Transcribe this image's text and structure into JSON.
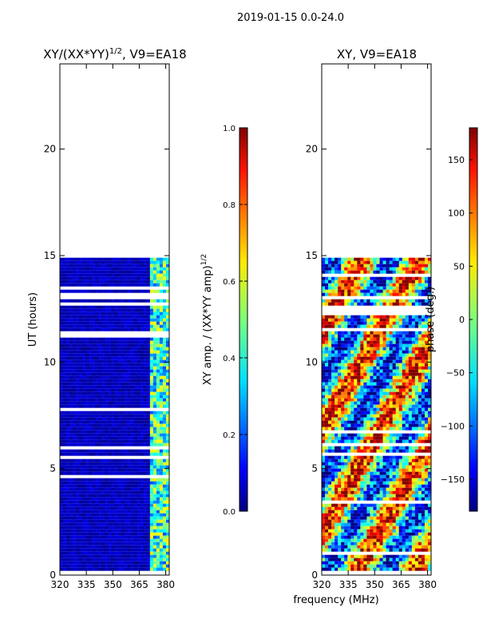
{
  "figure": {
    "suptitle": "2019-01-15 0.0-24.0",
    "shared_xlabel": "frequency (MHz)"
  },
  "chart_data": [
    {
      "type": "heatmap",
      "title": "XY/(XX*YY)^1/2, V9=EA18",
      "title_main": "XY/(XX*YY)",
      "title_exp": "1/2",
      "title_tail": ", V9=EA18",
      "xlabel": "",
      "ylabel": "UT (hours)",
      "xlim": [
        320,
        382
      ],
      "ylim": [
        0,
        24
      ],
      "xticks": [
        320,
        335,
        350,
        365,
        380
      ],
      "yticks": [
        0,
        5,
        10,
        15,
        20
      ],
      "data_range_hours": [
        0.3,
        14.9
      ],
      "colorbar": {
        "label_main": "XY amp. / (XX*YY amp)",
        "label_exp": "1/2",
        "range": [
          0.0,
          1.0
        ],
        "ticks": [
          "0.0",
          "0.2",
          "0.4",
          "0.6",
          "0.8",
          "1.0"
        ],
        "colormap": "jet"
      }
    },
    {
      "type": "heatmap",
      "title": "XY, V9=EA18",
      "xlabel": "frequency (MHz)",
      "ylabel": "",
      "xlim": [
        320,
        382
      ],
      "ylim": [
        0,
        24
      ],
      "xticks": [
        320,
        335,
        350,
        365,
        380
      ],
      "yticks": [
        0,
        5,
        10,
        15,
        20
      ],
      "data_range_hours": [
        0.3,
        14.9
      ],
      "colorbar": {
        "label": "phase (deg.)",
        "range": [
          -180,
          180
        ],
        "ticks": [
          "150",
          "100",
          "50",
          "0",
          "−50",
          "−100",
          "−150"
        ],
        "tick_values": [
          150,
          100,
          50,
          0,
          -50,
          -100,
          -150
        ],
        "colormap": "jet"
      }
    }
  ]
}
